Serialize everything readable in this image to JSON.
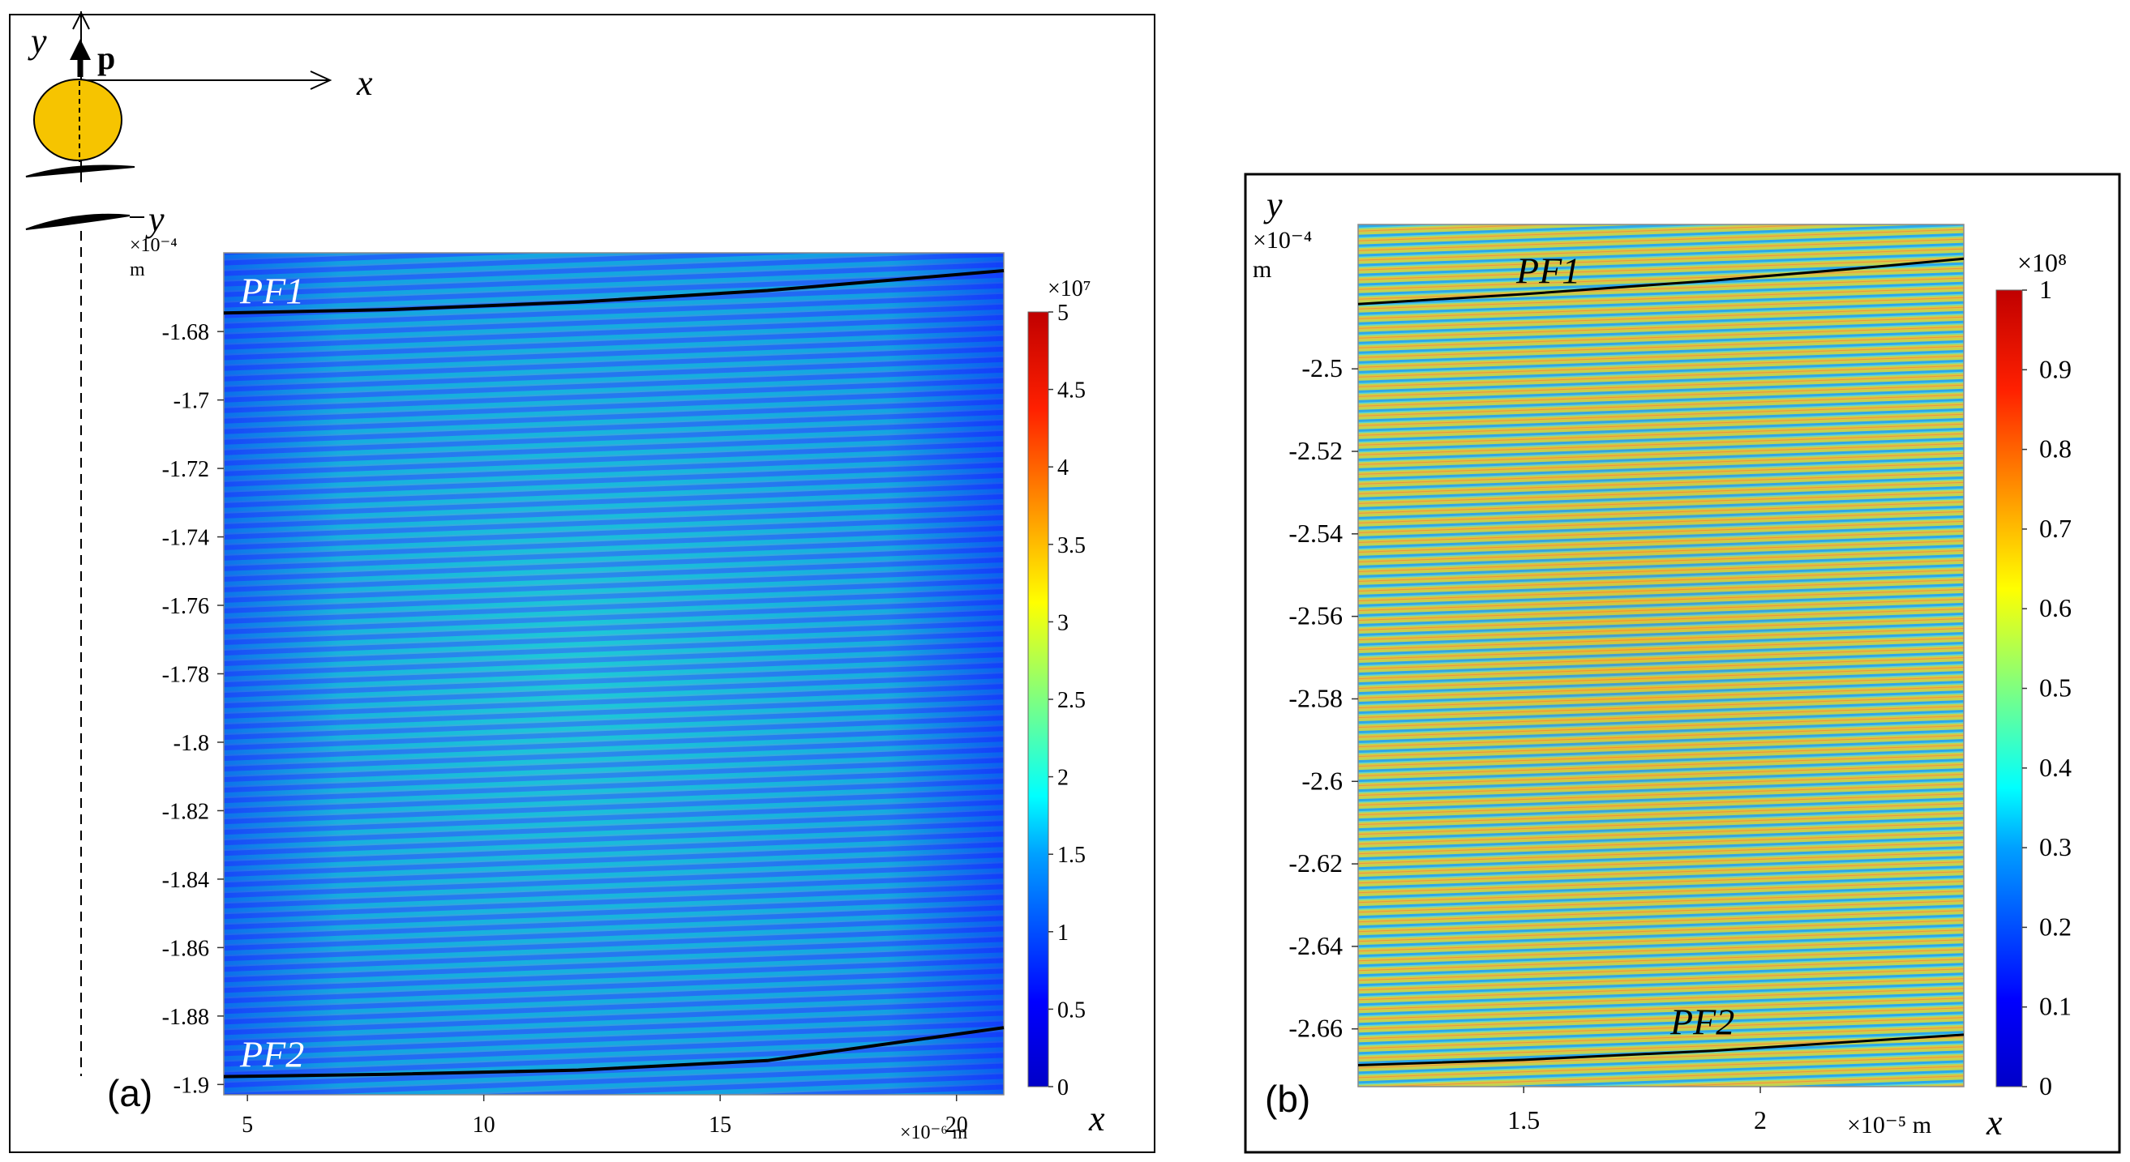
{
  "chart_data": [
    {
      "type": "heatmap",
      "panel_label": "(a)",
      "x_unit_label": "×10⁻⁶ m",
      "y_unit_label": "×10⁻⁴",
      "y_unit_m": "m",
      "x_axis_letter": "x",
      "y_axis_letter": "y",
      "xlim": [
        4.5,
        21
      ],
      "ylim": [
        -1.903,
        -1.657
      ],
      "x_ticks": [
        5,
        10,
        15,
        20
      ],
      "x_tick_labels": [
        "5",
        "10",
        "15",
        "20"
      ],
      "y_ticks": [
        -1.68,
        -1.7,
        -1.72,
        -1.74,
        -1.76,
        -1.78,
        -1.8,
        -1.82,
        -1.84,
        -1.86,
        -1.88,
        -1.9
      ],
      "y_tick_labels": [
        "-1.68",
        "-1.7",
        "-1.72",
        "-1.74",
        "-1.76",
        "-1.78",
        "-1.8",
        "-1.82",
        "-1.84",
        "-1.86",
        "-1.88",
        "-1.9"
      ],
      "colorbar": {
        "exponent_label": "×10⁷",
        "range": [
          0,
          5
        ],
        "ticks": [
          0,
          0.5,
          1,
          1.5,
          2,
          2.5,
          3,
          3.5,
          4,
          4.5,
          5
        ],
        "tick_labels": [
          "0",
          "0.5",
          "1",
          "1.5",
          "2",
          "2.5",
          "3",
          "3.5",
          "4",
          "4.5",
          "5"
        ]
      },
      "field_level_typical": 1.2,
      "lines": [
        {
          "name": "PF1",
          "x": [
            4.5,
            8,
            12,
            16,
            21
          ],
          "y": [
            -1.6746,
            -1.6736,
            -1.6714,
            -1.668,
            -1.6622
          ]
        },
        {
          "name": "PF2",
          "x": [
            4.5,
            8,
            12,
            16,
            21
          ],
          "y": [
            -1.8977,
            -1.897,
            -1.8958,
            -1.893,
            -1.8834
          ]
        }
      ]
    },
    {
      "type": "heatmap",
      "panel_label": "(b)",
      "x_unit_label": "×10⁻⁵ m",
      "y_unit_label": "×10⁻⁴",
      "y_unit_m": "m",
      "x_axis_letter": "x",
      "y_axis_letter": "y",
      "xlim": [
        1.15,
        2.43
      ],
      "ylim": [
        -2.674,
        -2.465
      ],
      "x_ticks": [
        1.5,
        2
      ],
      "x_tick_labels": [
        "1.5",
        "2"
      ],
      "y_ticks": [
        -2.5,
        -2.52,
        -2.54,
        -2.56,
        -2.58,
        -2.6,
        -2.62,
        -2.64,
        -2.66
      ],
      "y_tick_labels": [
        "-2.5",
        "-2.52",
        "-2.54",
        "-2.56",
        "-2.58",
        "-2.6",
        "-2.62",
        "-2.64",
        "-2.66"
      ],
      "colorbar": {
        "exponent_label": "×10⁸",
        "range": [
          0,
          1
        ],
        "ticks": [
          0,
          0.1,
          0.2,
          0.3,
          0.4,
          0.5,
          0.6,
          0.7,
          0.8,
          0.9,
          1
        ],
        "tick_labels": [
          "0",
          "0.1",
          "0.2",
          "0.3",
          "0.4",
          "0.5",
          "0.6",
          "0.7",
          "0.8",
          "0.9",
          "1"
        ]
      },
      "field_level_typical": 0.65,
      "lines": [
        {
          "name": "PF1",
          "x": [
            1.15,
            1.5,
            1.9,
            2.2,
            2.43
          ],
          "y": [
            -2.4843,
            -2.4819,
            -2.4786,
            -2.4757,
            -2.4733
          ]
        },
        {
          "name": "PF2",
          "x": [
            1.15,
            1.5,
            1.9,
            2.2,
            2.43
          ],
          "y": [
            -2.6688,
            -2.6675,
            -2.6653,
            -2.6631,
            -2.6614
          ]
        }
      ]
    }
  ],
  "inset": {
    "x_label": "x",
    "y_label": "y",
    "p_label": "p",
    "lens_y_label": "y"
  }
}
